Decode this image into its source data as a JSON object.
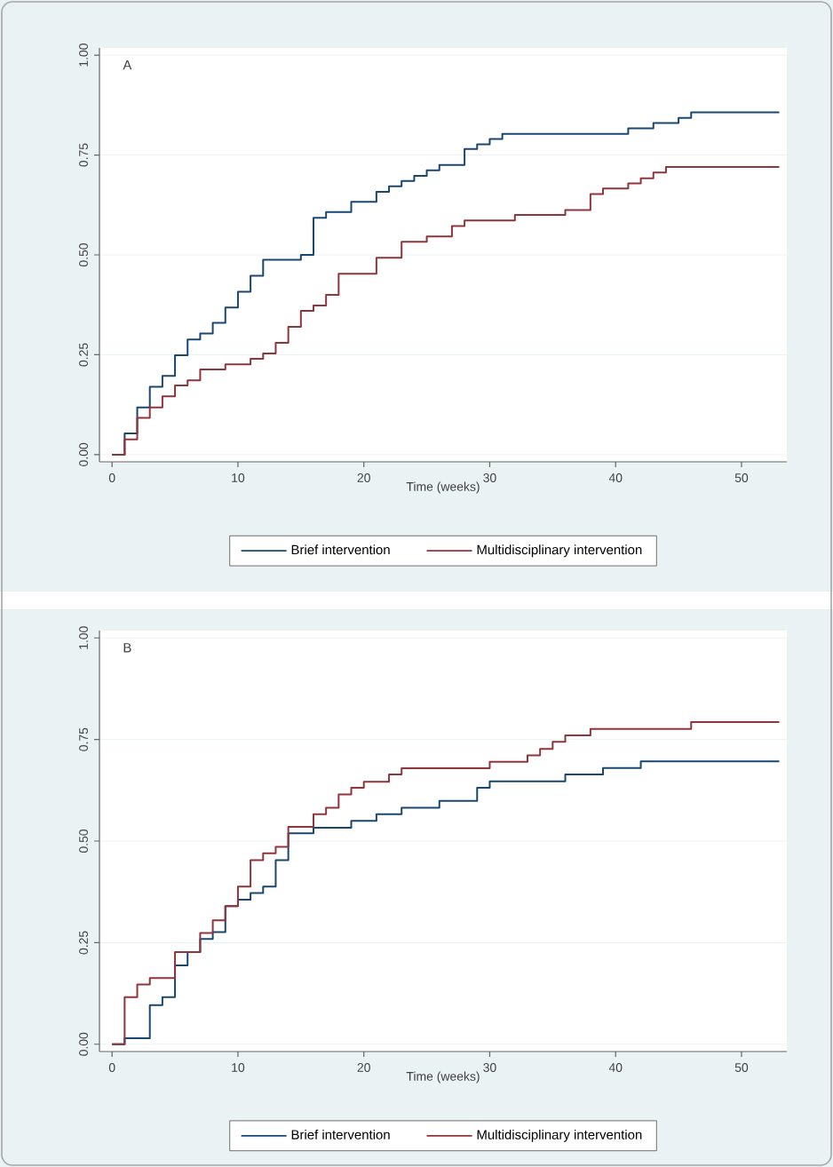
{
  "chart_data": [
    {
      "type": "step",
      "annotations": [
        "A"
      ],
      "xlabel": "Time (weeks)",
      "xlim": [
        -1,
        53.6
      ],
      "ylim": [
        -0.018,
        1.018
      ],
      "xticks": [
        0,
        10,
        20,
        30,
        40,
        50
      ],
      "yticks": [
        {
          "value": 0,
          "label": "0.00"
        },
        {
          "value": 0.25,
          "label": "0.25"
        },
        {
          "value": 0.5,
          "label": "0.50"
        },
        {
          "value": 0.75,
          "label": "0.75"
        },
        {
          "value": 1,
          "label": "1.00"
        }
      ],
      "grid": "y",
      "legend": "bottom",
      "series": [
        {
          "name": "Brief intervention",
          "color": "#1a476f",
          "x": [
            0,
            1,
            2,
            3,
            4,
            5,
            6,
            7,
            8,
            9,
            10,
            11,
            12,
            15,
            16,
            17,
            19,
            21,
            22,
            23,
            24,
            25,
            26,
            28,
            29,
            30,
            31,
            41,
            43,
            45,
            46,
            53
          ],
          "values": [
            0,
            0.053,
            0.118,
            0.17,
            0.197,
            0.249,
            0.288,
            0.303,
            0.33,
            0.368,
            0.408,
            0.448,
            0.488,
            0.5,
            0.593,
            0.607,
            0.633,
            0.658,
            0.672,
            0.685,
            0.698,
            0.712,
            0.725,
            0.765,
            0.777,
            0.79,
            0.803,
            0.817,
            0.83,
            0.843,
            0.857,
            0.857
          ]
        },
        {
          "name": "Multidisciplinary intervention",
          "color": "#90353b",
          "x": [
            0,
            1,
            2,
            3,
            4,
            5,
            6,
            7,
            9,
            11,
            12,
            13,
            14,
            15,
            16,
            17,
            18,
            21,
            23,
            25,
            27,
            28,
            32,
            36,
            38,
            39,
            41,
            42,
            43,
            44,
            53
          ],
          "values": [
            0,
            0.038,
            0.092,
            0.118,
            0.146,
            0.173,
            0.186,
            0.213,
            0.226,
            0.24,
            0.253,
            0.28,
            0.32,
            0.36,
            0.373,
            0.4,
            0.453,
            0.493,
            0.533,
            0.546,
            0.572,
            0.586,
            0.6,
            0.612,
            0.652,
            0.666,
            0.679,
            0.692,
            0.706,
            0.72,
            0.72
          ]
        }
      ]
    },
    {
      "type": "step",
      "annotations": [
        "B"
      ],
      "xlabel": "Time (weeks)",
      "xlim": [
        -1,
        53.6
      ],
      "ylim": [
        -0.018,
        1.018
      ],
      "xticks": [
        0,
        10,
        20,
        30,
        40,
        50
      ],
      "yticks": [
        {
          "value": 0,
          "label": "0.00"
        },
        {
          "value": 0.25,
          "label": "0.25"
        },
        {
          "value": 0.5,
          "label": "0.50"
        },
        {
          "value": 0.75,
          "label": "0.75"
        },
        {
          "value": 1,
          "label": "1.00"
        }
      ],
      "grid": "y",
      "legend": "bottom",
      "series": [
        {
          "name": "Brief intervention",
          "color": "#1a476f",
          "x": [
            0,
            1,
            3,
            4,
            5,
            6,
            7,
            8,
            9,
            10,
            11,
            12,
            13,
            14,
            16,
            19,
            21,
            23,
            26,
            29,
            30,
            36,
            39,
            42,
            53
          ],
          "values": [
            0,
            0.015,
            0.096,
            0.116,
            0.194,
            0.227,
            0.259,
            0.276,
            0.34,
            0.356,
            0.372,
            0.388,
            0.453,
            0.519,
            0.533,
            0.55,
            0.566,
            0.582,
            0.599,
            0.631,
            0.647,
            0.664,
            0.68,
            0.696,
            0.696
          ]
        },
        {
          "name": "Multidisciplinary intervention",
          "color": "#90353b",
          "x": [
            0,
            1,
            2,
            3,
            5,
            7,
            8,
            9,
            10,
            11,
            12,
            13,
            14,
            16,
            17,
            18,
            19,
            20,
            22,
            23,
            30,
            33,
            34,
            35,
            36,
            38,
            46,
            53
          ],
          "values": [
            0,
            0.116,
            0.147,
            0.163,
            0.227,
            0.274,
            0.305,
            0.34,
            0.388,
            0.453,
            0.47,
            0.486,
            0.535,
            0.566,
            0.582,
            0.615,
            0.631,
            0.646,
            0.664,
            0.679,
            0.695,
            0.711,
            0.727,
            0.744,
            0.76,
            0.776,
            0.793,
            0.793
          ]
        }
      ]
    }
  ]
}
